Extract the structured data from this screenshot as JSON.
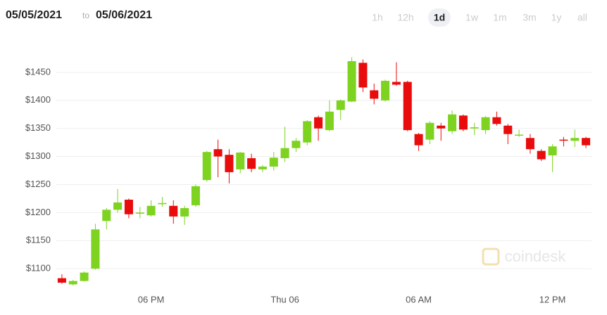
{
  "header": {
    "date_from": "05/05/2021",
    "to_label": "to",
    "date_to": "05/06/2021",
    "ranges": [
      "1h",
      "12h",
      "1d",
      "1w",
      "1m",
      "3m",
      "1y",
      "all"
    ],
    "selected_range": "1d"
  },
  "watermark": "coindesk",
  "chart_data": {
    "type": "candlestick",
    "categories": [
      null,
      null,
      null,
      null,
      null,
      null,
      null,
      null,
      "06 PM",
      null,
      null,
      null,
      null,
      null,
      null,
      null,
      null,
      null,
      null,
      null,
      "Thu 06",
      null,
      null,
      null,
      null,
      null,
      null,
      null,
      null,
      null,
      null,
      null,
      "06 AM",
      null,
      null,
      null,
      null,
      null,
      null,
      null,
      null,
      null,
      null,
      null,
      "12 PM",
      null,
      null,
      null
    ],
    "open": [
      1083,
      1072,
      1078,
      1100,
      1185,
      1205,
      1223,
      1198,
      1195,
      1215,
      1212,
      1193,
      1213,
      1258,
      1313,
      1303,
      1277,
      1297,
      1277,
      1282,
      1297,
      1315,
      1325,
      1370,
      1347,
      1383,
      1398,
      1467,
      1418,
      1400,
      1433,
      1433,
      1340,
      1330,
      1355,
      1345,
      1373,
      1350,
      1347,
      1370,
      1355,
      1338,
      1333,
      1310,
      1302,
      1330,
      1328,
      1333
    ],
    "high": [
      1090,
      1080,
      1095,
      1180,
      1208,
      1242,
      1225,
      1210,
      1222,
      1228,
      1222,
      1212,
      1250,
      1310,
      1330,
      1313,
      1308,
      1305,
      1285,
      1308,
      1353,
      1333,
      1365,
      1373,
      1400,
      1402,
      1477,
      1473,
      1430,
      1437,
      1468,
      1435,
      1342,
      1363,
      1360,
      1382,
      1375,
      1360,
      1372,
      1380,
      1358,
      1348,
      1340,
      1313,
      1322,
      1335,
      1348,
      1335
    ],
    "low": [
      1073,
      1070,
      1077,
      1098,
      1170,
      1200,
      1190,
      1190,
      1193,
      1210,
      1180,
      1178,
      1210,
      1255,
      1263,
      1252,
      1270,
      1272,
      1272,
      1275,
      1290,
      1308,
      1320,
      1328,
      1345,
      1365,
      1397,
      1415,
      1393,
      1398,
      1426,
      1345,
      1310,
      1322,
      1328,
      1340,
      1345,
      1338,
      1340,
      1355,
      1322,
      1335,
      1305,
      1292,
      1272,
      1318,
      1317,
      1315
    ],
    "close": [
      1075,
      1078,
      1093,
      1170,
      1205,
      1218,
      1197,
      1200,
      1212,
      1217,
      1193,
      1208,
      1247,
      1308,
      1300,
      1272,
      1307,
      1278,
      1282,
      1298,
      1315,
      1328,
      1363,
      1350,
      1380,
      1400,
      1470,
      1423,
      1403,
      1435,
      1428,
      1347,
      1320,
      1360,
      1350,
      1375,
      1348,
      1352,
      1370,
      1358,
      1340,
      1339,
      1313,
      1295,
      1318,
      1329,
      1333,
      1320
    ],
    "up_color": "#7ed321",
    "down_color": "#e80c0c",
    "ylim": [
      1065,
      1485
    ],
    "yticks": [
      {
        "value": 1100,
        "label": "$1100"
      },
      {
        "value": 1150,
        "label": "$1150"
      },
      {
        "value": 1200,
        "label": "$1200"
      },
      {
        "value": 1250,
        "label": "$1250"
      },
      {
        "value": 1300,
        "label": "$1300"
      },
      {
        "value": 1350,
        "label": "$1350"
      },
      {
        "value": 1400,
        "label": "$1400"
      },
      {
        "value": 1450,
        "label": "$1450"
      }
    ],
    "grid": true
  }
}
